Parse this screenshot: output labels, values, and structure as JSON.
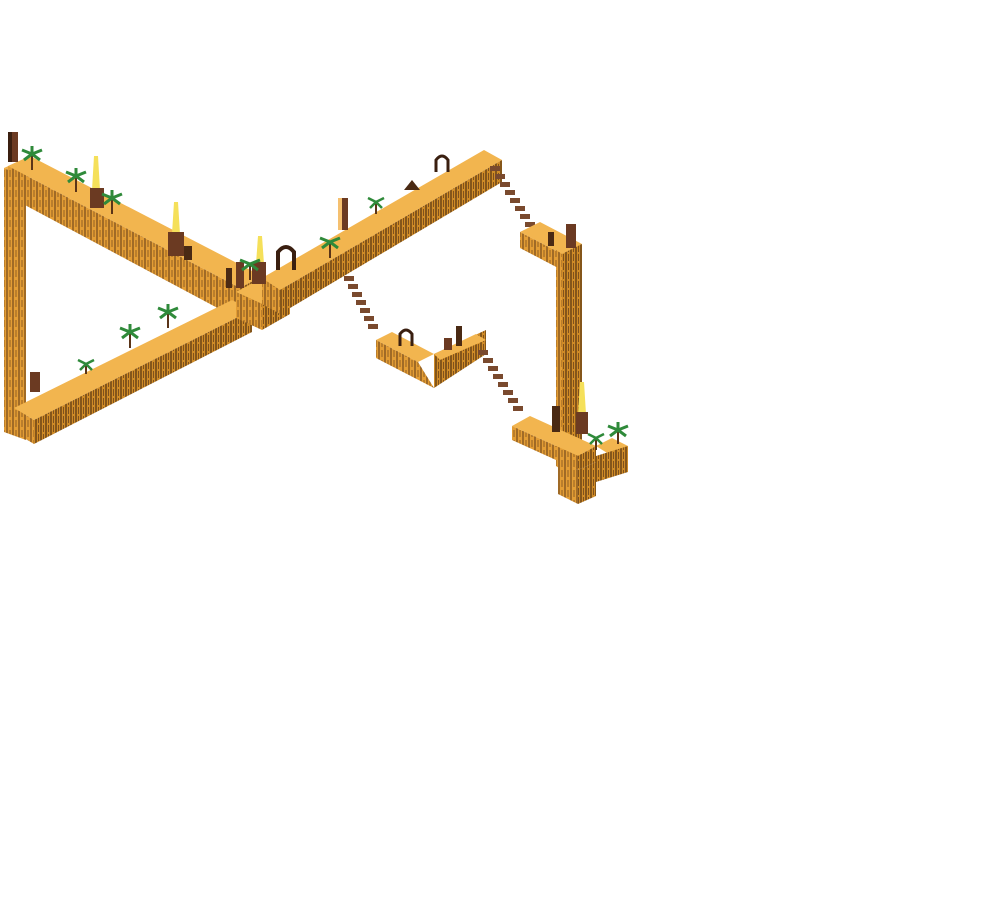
{
  "game": {
    "scene": "isometric-desert-ruins-level",
    "colors": {
      "background": "#ffffff",
      "stone_top": "#f0b04a",
      "stone_left": "#e09a32",
      "stone_right": "#c98522",
      "stone_dark": "#3a1f10",
      "pillar": "#6b3a22",
      "obelisk_tip": "#f5e05a",
      "palm_leaf": "#2f8a3a",
      "palm_trunk": "#5a3418",
      "stair_step": "#7a4a2e"
    },
    "icons": [
      "palm-tree-icon",
      "obelisk-icon",
      "stone-arch-icon",
      "broken-pillar-icon",
      "stair-step-icon"
    ]
  }
}
